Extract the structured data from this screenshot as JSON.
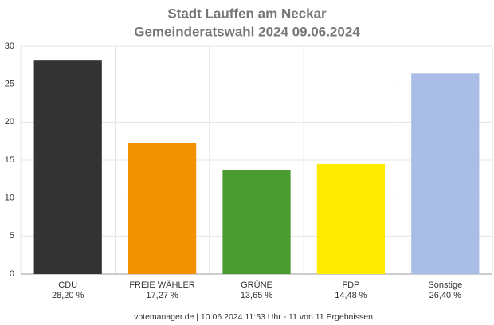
{
  "chart_data": {
    "type": "bar",
    "title": "Stadt Lauffen am Neckar",
    "subtitle": "Gemeinderatswahl 2024 09.06.2024",
    "categories": [
      "CDU",
      "FREIE WÄHLER",
      "GRÜNE",
      "FDP",
      "Sonstige"
    ],
    "values": [
      28.2,
      17.27,
      13.65,
      14.48,
      26.4
    ],
    "value_labels": [
      "28,20 %",
      "17,27 %",
      "13,65 %",
      "14,48 %",
      "26,40 %"
    ],
    "colors": [
      "#333333",
      "#f39200",
      "#4a9a2f",
      "#ffeb00",
      "#aabde6"
    ],
    "ylim": [
      0,
      30
    ],
    "yticks": [
      0,
      5,
      10,
      15,
      20,
      25,
      30
    ],
    "grid": true,
    "footer": "votemanager.de | 10.06.2024 11:53 Uhr - 11 von 11 Ergebnissen"
  }
}
